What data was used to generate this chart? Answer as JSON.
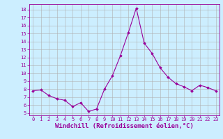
{
  "x": [
    0,
    1,
    2,
    3,
    4,
    5,
    6,
    7,
    8,
    9,
    10,
    11,
    12,
    13,
    14,
    15,
    16,
    17,
    18,
    19,
    20,
    21,
    22,
    23
  ],
  "y": [
    7.8,
    7.9,
    7.2,
    6.8,
    6.6,
    5.8,
    6.3,
    5.2,
    5.5,
    8.0,
    9.7,
    12.2,
    15.1,
    18.2,
    13.8,
    12.5,
    10.7,
    9.5,
    8.7,
    8.3,
    7.8,
    8.5,
    8.2,
    7.8
  ],
  "xlabel": "Windchill (Refroidissement éolien,°C)",
  "xticks": [
    0,
    1,
    2,
    3,
    4,
    5,
    6,
    7,
    8,
    9,
    10,
    11,
    12,
    13,
    14,
    15,
    16,
    17,
    18,
    19,
    20,
    21,
    22,
    23
  ],
  "yticks": [
    5,
    6,
    7,
    8,
    9,
    10,
    11,
    12,
    13,
    14,
    15,
    16,
    17,
    18
  ],
  "ylim": [
    4.7,
    18.7
  ],
  "xlim": [
    -0.5,
    23.5
  ],
  "line_color": "#990099",
  "marker": "D",
  "marker_size": 1.8,
  "line_width": 0.8,
  "bg_color": "#cceeff",
  "grid_color": "#b0b0b0",
  "tick_color": "#990099",
  "label_color": "#990099",
  "tick_fontsize": 5.0,
  "xlabel_fontsize": 6.5
}
